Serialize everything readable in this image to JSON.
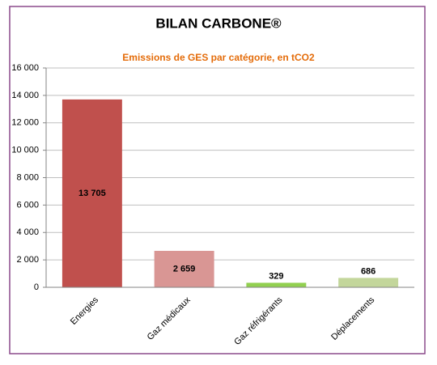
{
  "chart_data": {
    "type": "bar",
    "title": "BILAN CARBONE®",
    "subtitle": "Emissions de GES par catégorie, en tCO2",
    "categories": [
      "Energies",
      "Gaz médicaux",
      "Gaz réfrigérants",
      "Déplacements"
    ],
    "values": [
      13705,
      2659,
      329,
      686
    ],
    "value_labels": [
      "13 705",
      "2 659",
      "329",
      "686"
    ],
    "colors": [
      "#c0504d",
      "#d99694",
      "#92d050",
      "#c3d69b"
    ],
    "ylim": [
      0,
      16000
    ],
    "yticks": [
      0,
      {
        "value": 2000,
        "label": "2 000"
      },
      {
        "value": 4000,
        "label": "4 000"
      },
      {
        "value": 6000,
        "label": "6 000"
      },
      {
        "value": 8000,
        "label": "8 000"
      },
      {
        "value": 10000,
        "label": "10 000"
      },
      {
        "value": 12000,
        "label": "12 000"
      },
      {
        "value": 14000,
        "label": "14 000"
      },
      {
        "value": 16000,
        "label": "16 000"
      }
    ],
    "grid": true
  }
}
